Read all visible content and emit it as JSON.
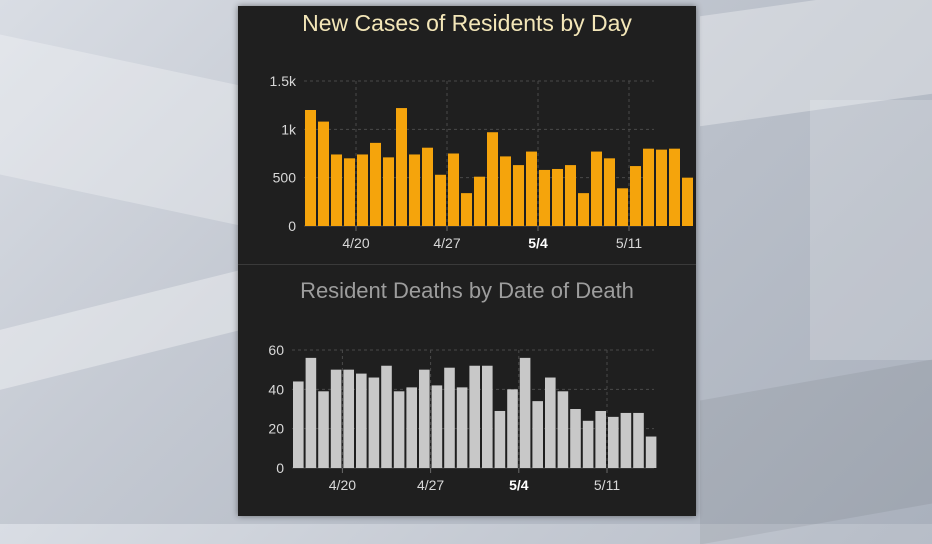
{
  "chart_data": [
    {
      "type": "bar",
      "title": "New Cases of Residents by Day",
      "xlabel": "",
      "ylabel": "",
      "ylim": [
        0,
        1500
      ],
      "y_ticks": [
        {
          "value": 0,
          "label": "0"
        },
        {
          "value": 500,
          "label": "500"
        },
        {
          "value": 1000,
          "label": "1k"
        },
        {
          "value": 1500,
          "label": "1.5k"
        }
      ],
      "x_ticks": [
        {
          "index": 4,
          "label": "4/20",
          "bold": false
        },
        {
          "index": 11,
          "label": "4/27",
          "bold": false
        },
        {
          "index": 18,
          "label": "5/4",
          "bold": true
        },
        {
          "index": 25,
          "label": "5/11",
          "bold": false
        }
      ],
      "grid": true,
      "color": "#f5a40c",
      "values": [
        1200,
        1080,
        740,
        700,
        740,
        860,
        710,
        1220,
        740,
        810,
        530,
        750,
        340,
        510,
        970,
        720,
        630,
        770,
        580,
        590,
        630,
        340,
        770,
        700,
        390,
        620,
        800,
        790,
        800,
        500
      ]
    },
    {
      "type": "bar",
      "title": "Resident Deaths by Date of Death",
      "xlabel": "",
      "ylabel": "",
      "ylim": [
        0,
        60
      ],
      "y_ticks": [
        {
          "value": 0,
          "label": "0"
        },
        {
          "value": 20,
          "label": "20"
        },
        {
          "value": 40,
          "label": "40"
        },
        {
          "value": 60,
          "label": "60"
        }
      ],
      "x_ticks": [
        {
          "index": 4,
          "label": "4/20",
          "bold": false
        },
        {
          "index": 11,
          "label": "4/27",
          "bold": false
        },
        {
          "index": 18,
          "label": "5/4",
          "bold": true
        },
        {
          "index": 25,
          "label": "5/11",
          "bold": false
        }
      ],
      "grid": true,
      "color": "#c8c8c8",
      "values": [
        44,
        56,
        39,
        50,
        50,
        48,
        46,
        52,
        39,
        41,
        50,
        42,
        51,
        41,
        52,
        52,
        29,
        40,
        56,
        34,
        46,
        39,
        30,
        24,
        29,
        26,
        28,
        28,
        16
      ]
    }
  ]
}
